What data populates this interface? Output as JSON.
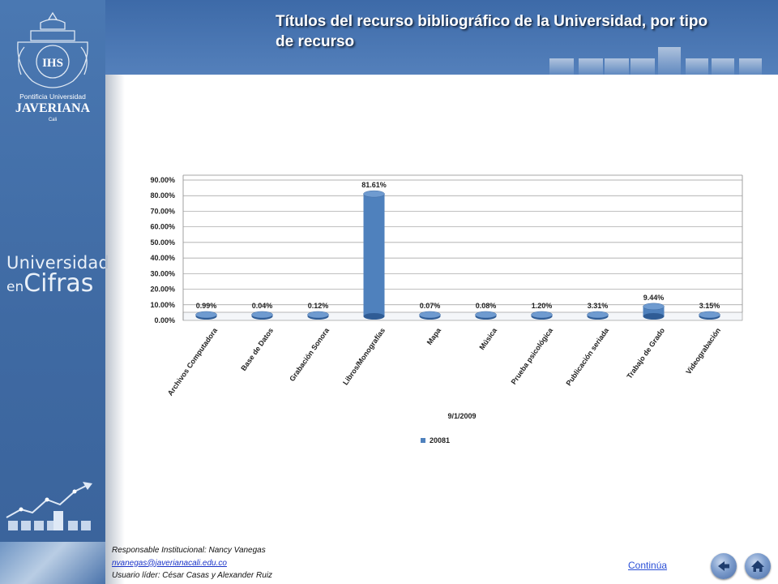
{
  "header": {
    "title": "Títulos del recurso bibliográfico de la Universidad, por tipo de recurso"
  },
  "sidebar": {
    "crest_name_line1": "Pontificia Universidad",
    "crest_name_line2": "JAVERIANA",
    "crest_name_line3": "Cali",
    "crest_monogram": "IHS",
    "brand_line1": "Universidad",
    "brand_line2_small": "en",
    "brand_line2_big": "Cifras"
  },
  "chart_data": {
    "type": "bar",
    "title": "",
    "xlabel": "9/1/2009",
    "ylabel": "",
    "categories": [
      "Archivos Computadora",
      "Base de Datos",
      "Grabación Sonora",
      "Libros/Monografías",
      "Mapa",
      "Música",
      "Prueba psicológica",
      "Publicación seriada",
      "Trabajo de Grado",
      "Videograbación"
    ],
    "series": [
      {
        "name": "20081",
        "values": [
          0.99,
          0.04,
          0.12,
          81.61,
          0.07,
          0.08,
          1.2,
          3.31,
          9.44,
          3.15
        ],
        "labels": [
          "0.99%",
          "0.04%",
          "0.12%",
          "81.61%",
          "0.07%",
          "0.08%",
          "1.20%",
          "3.31%",
          "9.44%",
          "3.15%"
        ],
        "color": "#4f81bd"
      }
    ],
    "ylim": [
      0,
      90
    ],
    "yticks": [
      "0.00%",
      "10.00%",
      "20.00%",
      "30.00%",
      "40.00%",
      "50.00%",
      "60.00%",
      "70.00%",
      "80.00%",
      "90.00%"
    ],
    "grid": true,
    "legend_position": "bottom-center"
  },
  "footer": {
    "responsable": "Responsable Institucional: Nancy Vanegas",
    "email": "nvanegas@javerianacali.edu.co",
    "usuario": "Usuario líder: César Casas y Alexander Ruiz"
  },
  "nav": {
    "continue_label": "Continúa",
    "back_icon": "back-arrow-icon",
    "home_icon": "home-icon"
  },
  "colors": {
    "sidebar": "#4a78b2",
    "header": "#4471ad",
    "bar": "#4f81bd",
    "link": "#1a33c8"
  }
}
